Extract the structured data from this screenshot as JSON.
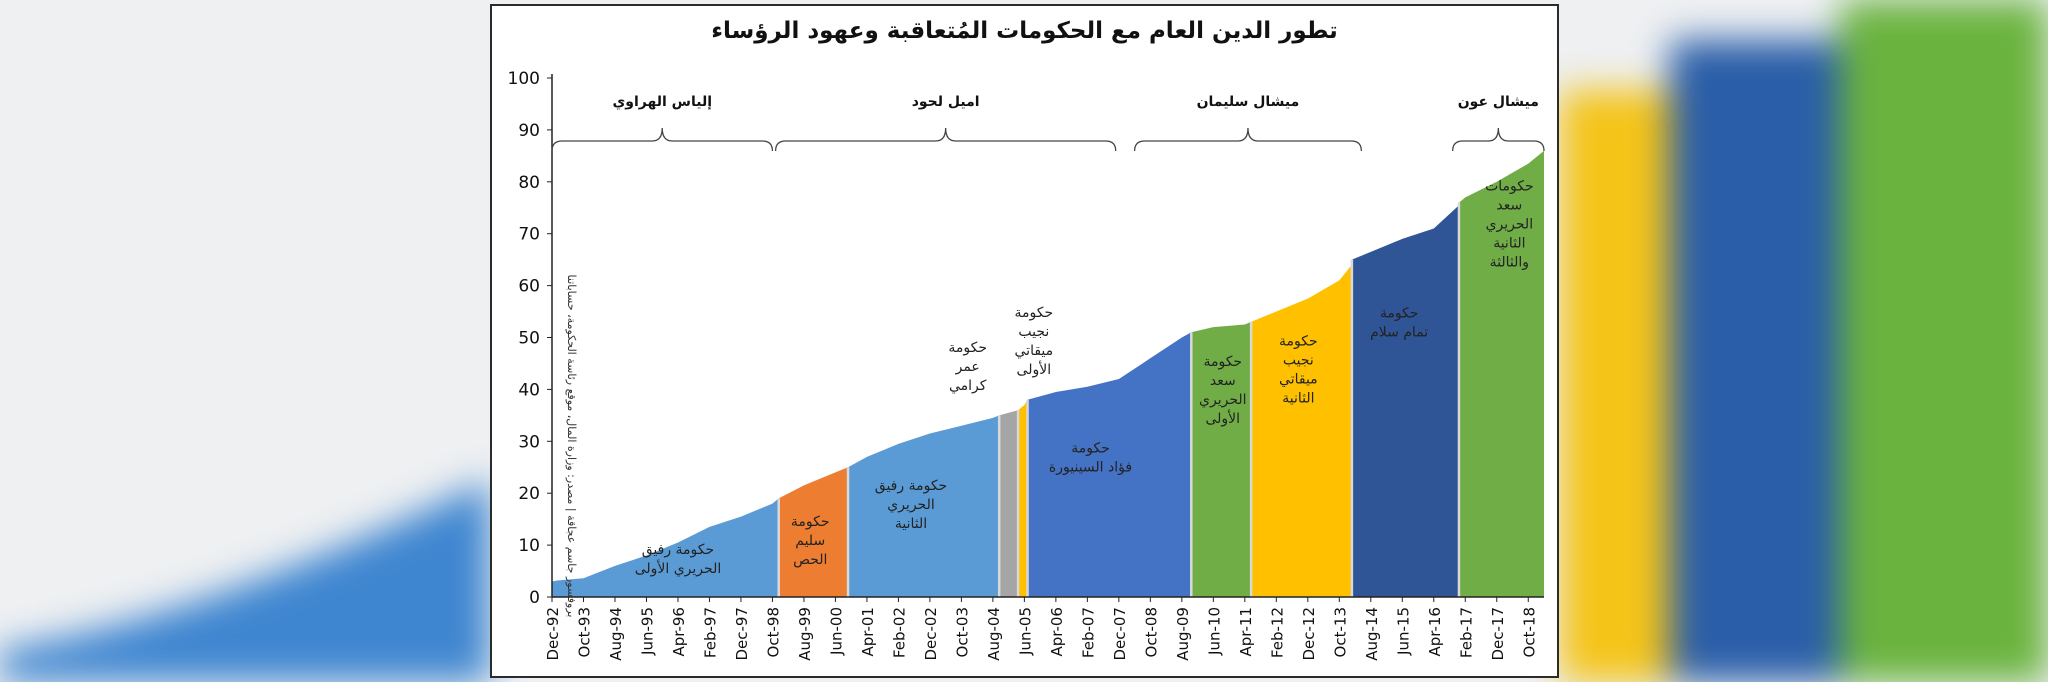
{
  "chart_data": {
    "type": "area",
    "title": "تطور الدين العام مع الحكومات المُتعاقبة وعهود الرؤساء",
    "ylabel": "بروفسور جاسم عجاقة | مصدر: وزارة المال، موقع رئاسة الحكومة، حساباتنا",
    "ylim": [
      0,
      100
    ],
    "yticks": [
      "0",
      "10",
      "20",
      "30",
      "40",
      "50",
      "60",
      "70",
      "80",
      "90",
      "100"
    ],
    "xticks": [
      "Dec-92",
      "Oct-93",
      "Aug-94",
      "Jun-95",
      "Apr-96",
      "Feb-97",
      "Dec-97",
      "Oct-98",
      "Aug-99",
      "Jun-00",
      "Apr-01",
      "Feb-02",
      "Dec-02",
      "Oct-03",
      "Aug-04",
      "Jun-05",
      "Apr-06",
      "Feb-07",
      "Dec-07",
      "Oct-08",
      "Aug-09",
      "Jun-10",
      "Apr-11",
      "Feb-12",
      "Dec-12",
      "Oct-13",
      "Aug-14",
      "Jun-15",
      "Apr-16",
      "Feb-17",
      "Dec-17",
      "Oct-18"
    ],
    "grid": false,
    "series": [
      {
        "name": "حكومة رفيق الحريري الأولى",
        "color": "#5b9bd5",
        "x": [
          "Dec-92",
          "Feb-93",
          "Oct-93",
          "Aug-94",
          "Jun-95",
          "Apr-96",
          "Feb-97",
          "Dec-97",
          "Oct-98",
          "Dec-98"
        ],
        "values": [
          3,
          3.2,
          3.6,
          6,
          8,
          10.5,
          13.5,
          15.5,
          18,
          19
        ]
      },
      {
        "name": "حكومة سليم الحص",
        "color": "#ed7d31",
        "x": [
          "Dec-98",
          "Aug-99",
          "Jun-00",
          "Oct-00"
        ],
        "values": [
          19,
          21.5,
          24,
          25
        ]
      },
      {
        "name": "حكومة رفيق الحريري الثانية",
        "color": "#5b9bd5",
        "x": [
          "Oct-00",
          "Apr-01",
          "Feb-02",
          "Dec-02",
          "Oct-03",
          "Aug-04",
          "Oct-04"
        ],
        "values": [
          25,
          27,
          29.5,
          31.5,
          33,
          34.5,
          35
        ]
      },
      {
        "name": "حكومة عمر كرامي",
        "color": "#a5a5a5",
        "x": [
          "Oct-04",
          "Jan-05",
          "Apr-05"
        ],
        "values": [
          35,
          35.5,
          36
        ]
      },
      {
        "name": "حكومة نجيب ميقاتي الأولى",
        "color": "#ffc000",
        "x": [
          "Apr-05",
          "Jun-05",
          "Jul-05"
        ],
        "values": [
          36,
          37,
          38
        ]
      },
      {
        "name": "حكومة فؤاد السينيورة",
        "color": "#4472c4",
        "x": [
          "Jul-05",
          "Apr-06",
          "Feb-07",
          "Dec-07",
          "Oct-08",
          "Aug-09",
          "Nov-09"
        ],
        "values": [
          38,
          39.5,
          40.5,
          42,
          46,
          50,
          51
        ]
      },
      {
        "name": "حكومة سعد الحريري الأولى",
        "color": "#70ad47",
        "x": [
          "Nov-09",
          "Jun-10",
          "Apr-11",
          "Jun-11"
        ],
        "values": [
          51,
          52,
          52.5,
          53
        ]
      },
      {
        "name": "حكومة نجيب ميقاتي الثانية",
        "color": "#ffc000",
        "x": [
          "Jun-11",
          "Feb-12",
          "Dec-12",
          "Oct-13",
          "Feb-14"
        ],
        "values": [
          53,
          55,
          57.5,
          61,
          64
        ]
      },
      {
        "name": "حكومة تمام سلام",
        "color": "#2f5597",
        "x": [
          "Feb-14",
          "Aug-14",
          "Jun-15",
          "Apr-16",
          "Dec-16"
        ],
        "values": [
          65,
          66.5,
          69,
          71,
          75.5
        ]
      },
      {
        "name": "حكومات سعد الحريري الثانية والثالثة",
        "color": "#70ad47",
        "x": [
          "Dec-16",
          "Feb-17",
          "Dec-17",
          "Oct-18",
          "Mar-19"
        ],
        "values": [
          76,
          77,
          80,
          83.5,
          86
        ]
      }
    ],
    "region_labels": [
      {
        "lines": [
          "حكومة رفيق",
          "الحريري الأولى"
        ],
        "at": [
          "Apr-96",
          6.5
        ]
      },
      {
        "lines": [
          "حكومة",
          "سليم",
          "الحص"
        ],
        "at": [
          "Oct-99",
          10
        ]
      },
      {
        "lines": [
          "حكومة رفيق",
          "الحريري",
          "الثانية"
        ],
        "at": [
          "Jun-02",
          17
        ]
      },
      {
        "lines": [
          "حكومة",
          "عمر",
          "كرامي"
        ],
        "at": [
          "Dec-03",
          43.5
        ]
      },
      {
        "lines": [
          "حكومة",
          "نجيب",
          "ميقاتي",
          "الأولى"
        ],
        "at": [
          "Sep-05",
          48.5
        ]
      },
      {
        "lines": [
          "حكومة",
          "فؤاد السينيورة"
        ],
        "at": [
          "Mar-07",
          26
        ]
      },
      {
        "lines": [
          "حكومة",
          "سعد",
          "الحريري",
          "الأولى"
        ],
        "at": [
          "Sep-10",
          39
        ]
      },
      {
        "lines": [
          "حكومة",
          "نجيب",
          "ميقاتي",
          "الثانية"
        ],
        "at": [
          "Sep-12",
          43
        ]
      },
      {
        "lines": [
          "حكومة",
          "تمام سلام"
        ],
        "at": [
          "May-15",
          52
        ]
      },
      {
        "lines": [
          "حكومات",
          "سعد",
          "الحريري",
          "الثانية",
          "والثالثة"
        ],
        "at": [
          "Apr-18",
          71
        ]
      }
    ],
    "presidents": [
      {
        "name": "إلياس الهراوي",
        "from": "Dec-92",
        "to": "Oct-98"
      },
      {
        "name": "اميل لحود",
        "from": "Nov-98",
        "to": "Nov-07"
      },
      {
        "name": "ميشال سليمان",
        "from": "May-08",
        "to": "May-14"
      },
      {
        "name": "ميشال عون",
        "from": "Oct-16",
        "to": "Mar-19"
      }
    ]
  },
  "colors": {
    "bg_blue": "#3f86d0",
    "bg_yellow": "#f4c419",
    "bg_green": "#6ab33e",
    "bg_navy": "#2a5ea8"
  }
}
